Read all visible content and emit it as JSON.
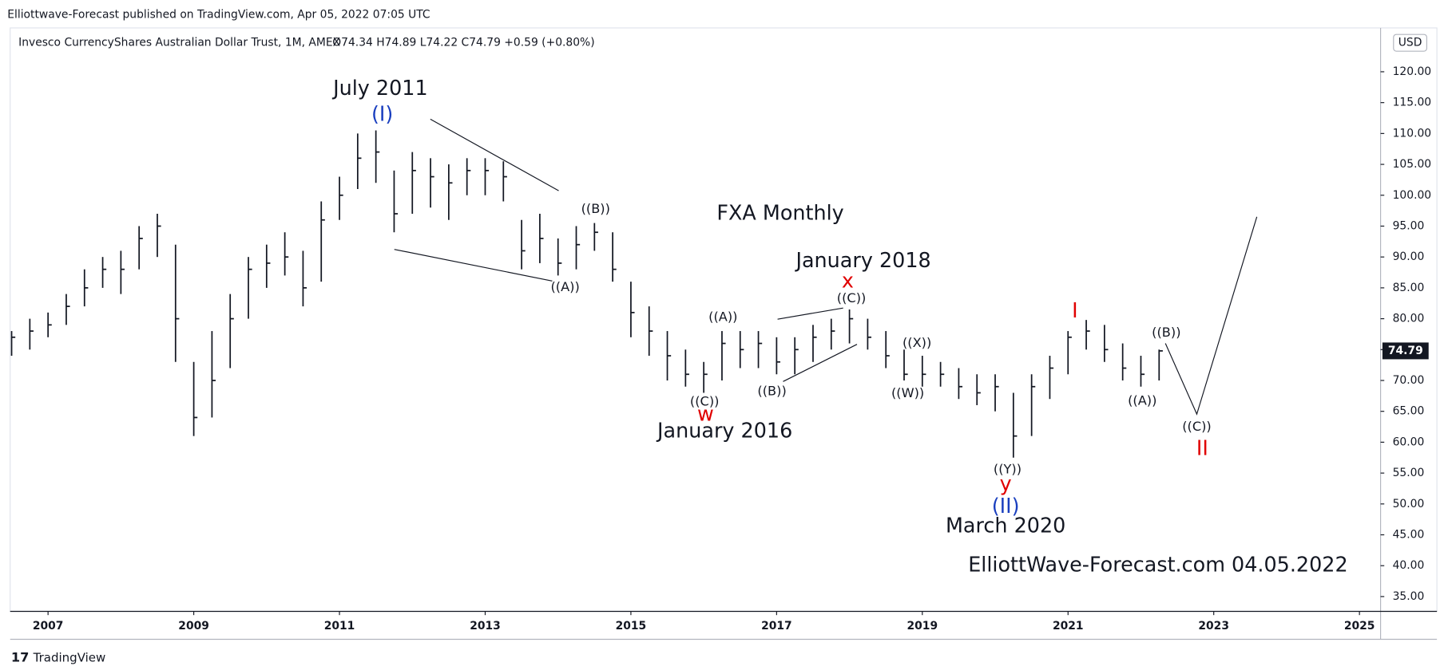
{
  "header": {
    "published": "Elliottwave-Forecast published on TradingView.com, Apr 05, 2022 07:05 UTC",
    "instrument": "Invesco CurrencyShares Australian Dollar Trust, 1M, AMEX",
    "ohlc": "O74.34  H74.89  L74.22  C74.79  +0.59 (+0.80%)",
    "currency": "USD",
    "footer": "TradingView"
  },
  "chart_data": {
    "type": "ohlc",
    "last_price": 74.79,
    "color": "#131722",
    "x": [
      2006.5,
      2006.75,
      2007,
      2007.25,
      2007.5,
      2007.75,
      2008,
      2008.25,
      2008.5,
      2008.75,
      2009,
      2009.25,
      2009.5,
      2009.75,
      2010,
      2010.25,
      2010.5,
      2010.75,
      2011,
      2011.25,
      2011.5,
      2011.75,
      2012,
      2012.25,
      2012.5,
      2012.75,
      2013,
      2013.25,
      2013.5,
      2013.75,
      2014,
      2014.25,
      2014.5,
      2014.75,
      2015,
      2015.25,
      2015.5,
      2015.75,
      2016,
      2016.25,
      2016.5,
      2016.75,
      2017,
      2017.25,
      2017.5,
      2017.75,
      2018,
      2018.25,
      2018.5,
      2018.75,
      2019,
      2019.25,
      2019.5,
      2019.75,
      2020,
      2020.25,
      2020.5,
      2020.75,
      2021,
      2021.25,
      2021.5,
      2021.75,
      2022,
      2022.25
    ],
    "high": [
      78,
      80,
      81,
      84,
      88,
      90,
      91,
      95,
      97,
      92,
      73,
      78,
      84,
      90,
      92,
      94,
      91,
      99,
      103,
      110,
      110.5,
      104,
      107,
      106,
      105,
      106,
      106,
      105.5,
      96,
      97,
      93,
      95,
      95.5,
      94,
      86,
      82,
      78,
      75,
      73,
      78,
      78,
      78,
      77,
      77,
      79,
      80,
      81.5,
      80,
      78,
      75,
      74,
      73,
      72,
      71,
      71,
      68,
      71,
      74,
      78,
      79.8,
      79,
      76,
      74,
      75
    ],
    "low": [
      74,
      75,
      77,
      79,
      82,
      85,
      84,
      88,
      90,
      73,
      61,
      64,
      72,
      80,
      85,
      87,
      82,
      86,
      96,
      101,
      102,
      94,
      97,
      98,
      96,
      100,
      100,
      99,
      88,
      89,
      87,
      88,
      91,
      86,
      77,
      74,
      70,
      69,
      68,
      70,
      72,
      72,
      71,
      71,
      73,
      75,
      76,
      75,
      72,
      70,
      69,
      69,
      67,
      66,
      65,
      57.5,
      61,
      67,
      71,
      75,
      73,
      70,
      69,
      70
    ],
    "close": [
      77,
      78,
      79,
      82,
      85,
      88,
      88,
      93,
      95,
      80,
      64,
      70,
      80,
      88,
      89,
      90,
      85,
      96,
      100,
      106,
      107,
      97,
      104,
      103,
      102,
      104,
      104,
      103,
      91,
      93,
      89,
      92,
      94,
      88,
      81,
      78,
      74,
      71,
      71,
      76,
      75,
      76,
      73,
      75,
      77,
      78,
      80,
      77,
      74,
      71,
      71,
      71,
      69,
      68,
      69,
      61,
      69,
      72,
      77,
      78,
      75,
      72,
      71,
      74.79
    ],
    "xlim": [
      2006.48,
      2025.29
    ],
    "ylim": [
      32.6,
      127.1
    ],
    "xticks": [
      2007,
      2009,
      2011,
      2013,
      2015,
      2017,
      2019,
      2021,
      2023,
      2025
    ],
    "yticks": [
      {
        "value": 35,
        "label": "35.00"
      },
      {
        "value": 40,
        "label": "40.00"
      },
      {
        "value": 45,
        "label": "45.00"
      },
      {
        "value": 50,
        "label": "50.00"
      },
      {
        "value": 55,
        "label": "55.00"
      },
      {
        "value": 60,
        "label": "60.00"
      },
      {
        "value": 65,
        "label": "65.00"
      },
      {
        "value": 70,
        "label": "70.00"
      },
      {
        "value": 75,
        "label": "75.00"
      },
      {
        "value": 80,
        "label": "80.00"
      },
      {
        "value": 85,
        "label": "85.00"
      },
      {
        "value": 90,
        "label": "90.00"
      },
      {
        "value": 95,
        "label": "95.00"
      },
      {
        "value": 100,
        "label": "100.00"
      },
      {
        "value": 105,
        "label": "105.00"
      },
      {
        "value": 110,
        "label": "110.00"
      },
      {
        "value": 115,
        "label": "115.00"
      },
      {
        "value": 120,
        "label": "120.00"
      }
    ],
    "price_label": "74.79",
    "annotations": [
      "July 2011",
      "(I)",
      "FXA Monthly",
      "January 2018",
      "x",
      "((C))",
      "((A))",
      "((B))",
      "((A))",
      "((B))",
      "((C))",
      "w",
      "January 2016",
      "((X))",
      "((W))",
      "I",
      "((B))",
      "((A))",
      "((C))",
      "II",
      "((Y))",
      "y",
      "(II)",
      "March 2020",
      "ElliottWave-Forecast.com 04.05.2022"
    ]
  }
}
